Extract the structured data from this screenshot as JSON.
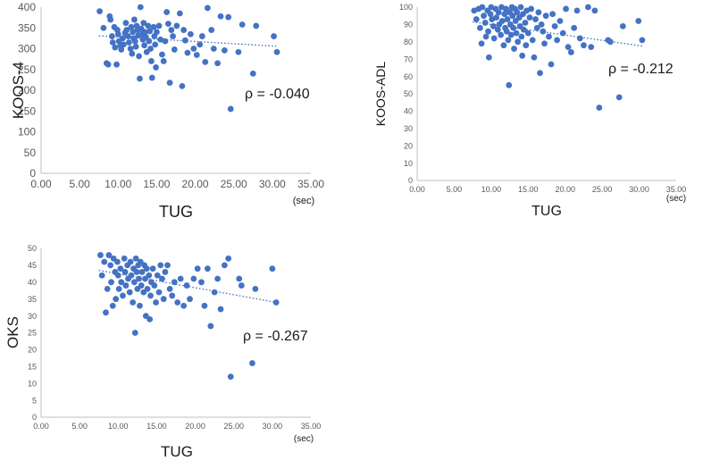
{
  "colors": {
    "point": "#4472C4",
    "trend": "#4472C4",
    "axis": "#bfbfbf",
    "text": "#1a1a1a",
    "tick": "#595959"
  },
  "chart_data": [
    {
      "type": "scatter",
      "id": "koos4",
      "ylabel": "KOOS-4",
      "xlabel": "TUG",
      "x_unit": "(sec)",
      "annotation": "ρ = -0.040",
      "xlim": [
        0,
        35
      ],
      "ylim": [
        0,
        400
      ],
      "x_ticks": [
        "0.00",
        "5.00",
        "10.00",
        "15.00",
        "20.00",
        "25.00",
        "30.00",
        "35.00"
      ],
      "y_ticks": [
        "0",
        "50",
        "100",
        "150",
        "200",
        "250",
        "300",
        "350",
        "400"
      ],
      "trendline": {
        "x": [
          7.5,
          30.5
        ],
        "y": [
          331,
          306
        ]
      },
      "points": [
        [
          7.6,
          390
        ],
        [
          8.1,
          350
        ],
        [
          8.5,
          265
        ],
        [
          8.7,
          262
        ],
        [
          8.9,
          378
        ],
        [
          9.0,
          370
        ],
        [
          9.2,
          330
        ],
        [
          9.3,
          315
        ],
        [
          9.5,
          352
        ],
        [
          9.6,
          303
        ],
        [
          9.8,
          262
        ],
        [
          9.9,
          345
        ],
        [
          10.0,
          335
        ],
        [
          10.1,
          318
        ],
        [
          10.3,
          308
        ],
        [
          10.4,
          298
        ],
        [
          10.6,
          325
        ],
        [
          10.7,
          310
        ],
        [
          10.9,
          338
        ],
        [
          11.0,
          362
        ],
        [
          11.1,
          345
        ],
        [
          11.3,
          330
        ],
        [
          11.4,
          315
        ],
        [
          11.6,
          300
        ],
        [
          11.7,
          352
        ],
        [
          11.8,
          288
        ],
        [
          11.9,
          340
        ],
        [
          12.0,
          325
        ],
        [
          12.1,
          370
        ],
        [
          12.2,
          318
        ],
        [
          12.3,
          305
        ],
        [
          12.4,
          355
        ],
        [
          12.5,
          345
        ],
        [
          12.6,
          332
        ],
        [
          12.7,
          282
        ],
        [
          12.8,
          228
        ],
        [
          12.9,
          400
        ],
        [
          13.0,
          348
        ],
        [
          13.1,
          335
        ],
        [
          13.2,
          322
        ],
        [
          13.3,
          362
        ],
        [
          13.4,
          308
        ],
        [
          13.5,
          340
        ],
        [
          13.6,
          328
        ],
        [
          13.7,
          292
        ],
        [
          13.9,
          355
        ],
        [
          14.0,
          318
        ],
        [
          14.1,
          342
        ],
        [
          14.2,
          300
        ],
        [
          14.3,
          270
        ],
        [
          14.4,
          230
        ],
        [
          14.6,
          352
        ],
        [
          14.7,
          330
        ],
        [
          14.8,
          310
        ],
        [
          14.9,
          255
        ],
        [
          15.0,
          340
        ],
        [
          15.3,
          355
        ],
        [
          15.5,
          322
        ],
        [
          15.7,
          286
        ],
        [
          15.9,
          270
        ],
        [
          16.1,
          318
        ],
        [
          16.3,
          388
        ],
        [
          16.5,
          360
        ],
        [
          16.7,
          218
        ],
        [
          16.9,
          345
        ],
        [
          17.1,
          330
        ],
        [
          17.3,
          298
        ],
        [
          17.6,
          355
        ],
        [
          18.0,
          385
        ],
        [
          18.3,
          210
        ],
        [
          18.5,
          345
        ],
        [
          18.7,
          320
        ],
        [
          19.0,
          290
        ],
        [
          19.4,
          335
        ],
        [
          19.8,
          300
        ],
        [
          20.2,
          285
        ],
        [
          20.6,
          310
        ],
        [
          20.9,
          330
        ],
        [
          21.3,
          268
        ],
        [
          21.6,
          398
        ],
        [
          22.1,
          345
        ],
        [
          22.4,
          300
        ],
        [
          22.9,
          265
        ],
        [
          23.3,
          378
        ],
        [
          23.8,
          296
        ],
        [
          24.3,
          376
        ],
        [
          24.6,
          155
        ],
        [
          25.6,
          292
        ],
        [
          26.1,
          358
        ],
        [
          27.5,
          240
        ],
        [
          27.9,
          355
        ],
        [
          30.2,
          330
        ],
        [
          30.6,
          292
        ]
      ]
    },
    {
      "type": "scatter",
      "id": "koosadl",
      "ylabel": "KOOS-ADL",
      "xlabel": "TUG",
      "x_unit": "(sec)",
      "annotation": "ρ = -0.212",
      "xlim": [
        0,
        35
      ],
      "ylim": [
        0,
        100
      ],
      "x_ticks": [
        "0.00",
        "5.00",
        "10.00",
        "15.00",
        "20.00",
        "25.00",
        "30.00",
        "35.00"
      ],
      "y_ticks": [
        "0",
        "10",
        "20",
        "30",
        "40",
        "50",
        "60",
        "70",
        "80",
        "90",
        "100"
      ],
      "trendline": {
        "x": [
          7.5,
          30.5
        ],
        "y": [
          91.5,
          77.5
        ]
      },
      "points": [
        [
          7.7,
          98
        ],
        [
          8.0,
          93
        ],
        [
          8.3,
          99
        ],
        [
          8.5,
          88
        ],
        [
          8.7,
          79
        ],
        [
          8.8,
          100
        ],
        [
          9.0,
          95
        ],
        [
          9.2,
          91
        ],
        [
          9.3,
          83
        ],
        [
          9.5,
          98
        ],
        [
          9.6,
          86
        ],
        [
          9.7,
          71
        ],
        [
          9.9,
          96
        ],
        [
          10.0,
          100
        ],
        [
          10.1,
          93
        ],
        [
          10.3,
          89
        ],
        [
          10.4,
          82
        ],
        [
          10.6,
          99
        ],
        [
          10.7,
          94
        ],
        [
          10.9,
          87
        ],
        [
          11.0,
          97
        ],
        [
          11.1,
          90
        ],
        [
          11.3,
          84
        ],
        [
          11.4,
          100
        ],
        [
          11.5,
          92
        ],
        [
          11.7,
          78
        ],
        [
          11.8,
          96
        ],
        [
          11.9,
          88
        ],
        [
          12.0,
          99
        ],
        [
          12.1,
          86
        ],
        [
          12.2,
          93
        ],
        [
          12.3,
          81
        ],
        [
          12.4,
          55
        ],
        [
          12.5,
          97
        ],
        [
          12.6,
          90
        ],
        [
          12.7,
          84
        ],
        [
          12.8,
          100
        ],
        [
          12.9,
          95
        ],
        [
          13.0,
          88
        ],
        [
          13.1,
          76
        ],
        [
          13.2,
          99
        ],
        [
          13.3,
          92
        ],
        [
          13.4,
          85
        ],
        [
          13.5,
          97
        ],
        [
          13.6,
          80
        ],
        [
          13.8,
          94
        ],
        [
          13.9,
          89
        ],
        [
          14.0,
          100
        ],
        [
          14.1,
          83
        ],
        [
          14.2,
          72
        ],
        [
          14.3,
          96
        ],
        [
          14.4,
          87
        ],
        [
          14.6,
          91
        ],
        [
          14.7,
          78
        ],
        [
          14.8,
          98
        ],
        [
          15.0,
          85
        ],
        [
          15.2,
          94
        ],
        [
          15.4,
          99
        ],
        [
          15.6,
          81
        ],
        [
          15.8,
          71
        ],
        [
          16.0,
          93
        ],
        [
          16.2,
          88
        ],
        [
          16.4,
          97
        ],
        [
          16.6,
          62
        ],
        [
          16.8,
          90
        ],
        [
          17.0,
          86
        ],
        [
          17.2,
          79
        ],
        [
          17.4,
          95
        ],
        [
          17.8,
          83
        ],
        [
          18.1,
          67
        ],
        [
          18.3,
          96
        ],
        [
          18.6,
          89
        ],
        [
          18.9,
          81
        ],
        [
          19.3,
          92
        ],
        [
          19.7,
          85
        ],
        [
          20.1,
          99
        ],
        [
          20.4,
          77
        ],
        [
          20.8,
          74
        ],
        [
          21.2,
          88
        ],
        [
          21.6,
          98
        ],
        [
          22.0,
          82
        ],
        [
          22.5,
          78
        ],
        [
          23.1,
          100
        ],
        [
          23.5,
          77
        ],
        [
          24.0,
          98
        ],
        [
          24.6,
          42
        ],
        [
          25.8,
          81
        ],
        [
          26.1,
          80
        ],
        [
          27.3,
          48
        ],
        [
          27.8,
          89
        ],
        [
          29.9,
          92
        ],
        [
          30.4,
          81
        ]
      ]
    },
    {
      "type": "scatter",
      "id": "oks",
      "ylabel": "OKS",
      "xlabel": "TUG",
      "x_unit": "(sec)",
      "annotation": "ρ = -0.267",
      "xlim": [
        0,
        35
      ],
      "ylim": [
        0,
        50
      ],
      "x_ticks": [
        "0.00",
        "5.00",
        "10.00",
        "15.00",
        "20.00",
        "25.00",
        "30.00",
        "35.00"
      ],
      "y_ticks": [
        "0",
        "5",
        "10",
        "15",
        "20",
        "25",
        "30",
        "35",
        "40",
        "45",
        "50"
      ],
      "trendline": {
        "x": [
          7.5,
          30.5
        ],
        "y": [
          43.5,
          34
        ]
      },
      "points": [
        [
          7.7,
          48
        ],
        [
          7.9,
          42
        ],
        [
          8.2,
          46
        ],
        [
          8.4,
          31
        ],
        [
          8.6,
          38
        ],
        [
          8.8,
          48
        ],
        [
          9.0,
          45
        ],
        [
          9.1,
          40
        ],
        [
          9.3,
          33
        ],
        [
          9.4,
          47
        ],
        [
          9.6,
          43
        ],
        [
          9.7,
          35
        ],
        [
          9.9,
          46
        ],
        [
          10.0,
          42
        ],
        [
          10.1,
          38
        ],
        [
          10.3,
          44
        ],
        [
          10.4,
          40
        ],
        [
          10.6,
          36
        ],
        [
          10.8,
          47
        ],
        [
          10.9,
          43
        ],
        [
          11.0,
          39
        ],
        [
          11.2,
          45
        ],
        [
          11.3,
          41
        ],
        [
          11.5,
          37
        ],
        [
          11.6,
          46
        ],
        [
          11.7,
          42
        ],
        [
          11.9,
          34
        ],
        [
          12.0,
          44
        ],
        [
          12.1,
          40
        ],
        [
          12.2,
          25
        ],
        [
          12.3,
          47
        ],
        [
          12.4,
          43
        ],
        [
          12.5,
          38
        ],
        [
          12.6,
          45
        ],
        [
          12.7,
          41
        ],
        [
          12.8,
          33
        ],
        [
          12.9,
          46
        ],
        [
          13.0,
          39
        ],
        [
          13.1,
          43
        ],
        [
          13.3,
          37
        ],
        [
          13.4,
          45
        ],
        [
          13.5,
          41
        ],
        [
          13.6,
          30
        ],
        [
          13.7,
          44
        ],
        [
          13.8,
          38
        ],
        [
          14.0,
          42
        ],
        [
          14.1,
          29
        ],
        [
          14.2,
          36
        ],
        [
          14.3,
          40
        ],
        [
          14.5,
          44
        ],
        [
          14.7,
          39
        ],
        [
          14.9,
          34
        ],
        [
          15.1,
          42
        ],
        [
          15.3,
          37
        ],
        [
          15.5,
          45
        ],
        [
          15.7,
          41
        ],
        [
          15.9,
          35
        ],
        [
          16.1,
          43
        ],
        [
          16.4,
          45
        ],
        [
          16.7,
          38
        ],
        [
          17.0,
          36
        ],
        [
          17.3,
          40
        ],
        [
          17.7,
          34
        ],
        [
          18.1,
          41
        ],
        [
          18.5,
          33
        ],
        [
          18.9,
          39
        ],
        [
          19.3,
          35
        ],
        [
          19.8,
          41
        ],
        [
          20.3,
          44
        ],
        [
          20.8,
          40
        ],
        [
          21.2,
          33
        ],
        [
          21.6,
          44
        ],
        [
          22.0,
          27
        ],
        [
          22.5,
          37
        ],
        [
          22.9,
          41
        ],
        [
          23.3,
          32
        ],
        [
          23.8,
          45
        ],
        [
          24.3,
          47
        ],
        [
          24.6,
          12
        ],
        [
          25.7,
          41
        ],
        [
          26.0,
          39
        ],
        [
          27.4,
          16
        ],
        [
          27.8,
          38
        ],
        [
          30.0,
          44
        ],
        [
          30.5,
          34
        ]
      ]
    }
  ]
}
